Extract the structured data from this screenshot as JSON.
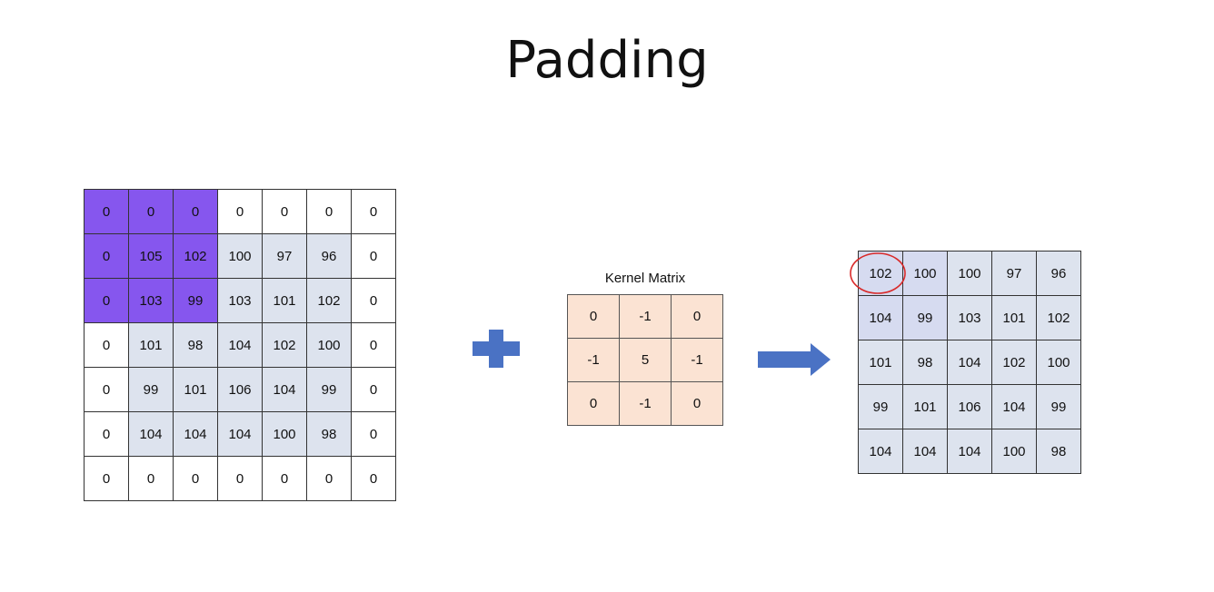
{
  "title": "Padding",
  "padded_matrix": {
    "rows": [
      [
        "0",
        "0",
        "0",
        "0",
        "0",
        "0",
        "0"
      ],
      [
        "0",
        "105",
        "102",
        "100",
        "97",
        "96",
        "0"
      ],
      [
        "0",
        "103",
        "99",
        "103",
        "101",
        "102",
        "0"
      ],
      [
        "0",
        "101",
        "98",
        "104",
        "102",
        "100",
        "0"
      ],
      [
        "0",
        "99",
        "101",
        "106",
        "104",
        "99",
        "0"
      ],
      [
        "0",
        "104",
        "104",
        "104",
        "100",
        "98",
        "0"
      ],
      [
        "0",
        "0",
        "0",
        "0",
        "0",
        "0",
        "0"
      ]
    ],
    "highlight_color": "#8656ee",
    "image_color": "#dde3ee"
  },
  "kernel": {
    "title": "Kernel Matrix",
    "rows": [
      [
        "0",
        "-1",
        "0"
      ],
      [
        "-1",
        "5",
        "-1"
      ],
      [
        "0",
        "-1",
        "0"
      ]
    ],
    "color": "#fbe3d3"
  },
  "output_matrix": {
    "rows": [
      [
        "102",
        "100",
        "100",
        "97",
        "96"
      ],
      [
        "104",
        "99",
        "103",
        "101",
        "102"
      ],
      [
        "101",
        "98",
        "104",
        "102",
        "100"
      ],
      [
        "99",
        "101",
        "106",
        "104",
        "99"
      ],
      [
        "104",
        "104",
        "104",
        "100",
        "98"
      ]
    ],
    "circled_value": "102",
    "circle_color": "#d92a2a"
  },
  "operator_color": "#4a72c4"
}
